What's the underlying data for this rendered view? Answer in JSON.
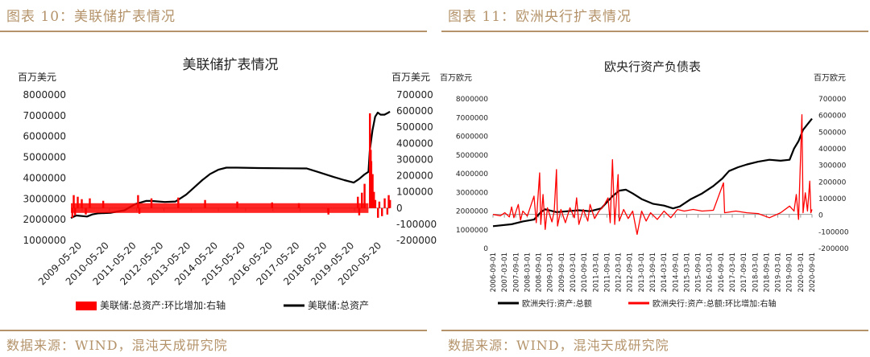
{
  "chart_data": [
    {
      "type": "line",
      "figure_label": "图表 10：美联储扩表情况",
      "title": "美联储扩表情况",
      "ylabel_left": "百万美元",
      "ylabel_right": "百万美元",
      "ylim_left": [
        1000000,
        8000000
      ],
      "yticks_left": [
        "8000000",
        "7000000",
        "6000000",
        "5000000",
        "4000000",
        "3000000",
        "2000000",
        "1000000"
      ],
      "ylim_right": [
        -200000,
        700000
      ],
      "yticks_right": [
        "700000",
        "600000",
        "500000",
        "400000",
        "300000",
        "200000",
        "100000",
        "0",
        "-100000",
        "-200000"
      ],
      "x_ticks": [
        "2009-05-20",
        "2010-05-20",
        "2011-05-20",
        "2012-05-20",
        "2013-05-20",
        "2014-05-20",
        "2015-05-20",
        "2016-05-20",
        "2017-05-20",
        "2018-05-20",
        "2019-05-20",
        "2020-05-20"
      ],
      "x_range": [
        2009.0,
        2020.9
      ],
      "series": [
        {
          "name": "美联储:总资产",
          "axis": "left",
          "color": "#000000",
          "kind": "line",
          "points": [
            [
              2009.0,
              2080000
            ],
            [
              2009.2,
              2200000
            ],
            [
              2009.6,
              2150000
            ],
            [
              2009.8,
              2250000
            ],
            [
              2010.0,
              2300000
            ],
            [
              2010.5,
              2330000
            ],
            [
              2011.0,
              2450000
            ],
            [
              2011.4,
              2750000
            ],
            [
              2011.8,
              2900000
            ],
            [
              2012.0,
              2900000
            ],
            [
              2012.5,
              2850000
            ],
            [
              2012.9,
              2870000
            ],
            [
              2013.0,
              2950000
            ],
            [
              2013.3,
              3200000
            ],
            [
              2013.6,
              3550000
            ],
            [
              2013.9,
              3900000
            ],
            [
              2014.2,
              4200000
            ],
            [
              2014.5,
              4400000
            ],
            [
              2014.8,
              4500000
            ],
            [
              2015.2,
              4500000
            ],
            [
              2016.0,
              4480000
            ],
            [
              2017.0,
              4470000
            ],
            [
              2017.8,
              4460000
            ],
            [
              2018.2,
              4300000
            ],
            [
              2018.8,
              4050000
            ],
            [
              2019.2,
              3900000
            ],
            [
              2019.55,
              3780000
            ],
            [
              2019.75,
              3950000
            ],
            [
              2019.95,
              4170000
            ],
            [
              2020.1,
              4300000
            ],
            [
              2020.15,
              5300000
            ],
            [
              2020.25,
              6300000
            ],
            [
              2020.35,
              6950000
            ],
            [
              2020.45,
              7150000
            ],
            [
              2020.55,
              7050000
            ],
            [
              2020.7,
              7050000
            ],
            [
              2020.85,
              7150000
            ],
            [
              2020.9,
              7200000
            ]
          ]
        },
        {
          "name": "美联储:总资产:环比增加:右轴",
          "axis": "right",
          "color": "#ff0000",
          "kind": "bar",
          "band": [
            2009.0,
            2020.1,
            -30000,
            30000
          ],
          "points": [
            [
              2009.05,
              -60000
            ],
            [
              2009.1,
              80000
            ],
            [
              2009.15,
              -45000
            ],
            [
              2009.25,
              70000
            ],
            [
              2009.4,
              55000
            ],
            [
              2009.55,
              -40000
            ],
            [
              2009.7,
              60000
            ],
            [
              2010.2,
              45000
            ],
            [
              2011.5,
              80000
            ],
            [
              2011.55,
              -35000
            ],
            [
              2012.0,
              60000
            ],
            [
              2013.0,
              65000
            ],
            [
              2014.0,
              50000
            ],
            [
              2015.2,
              40000
            ],
            [
              2016.5,
              35000
            ],
            [
              2017.5,
              30000
            ],
            [
              2018.6,
              -40000
            ],
            [
              2019.7,
              70000
            ],
            [
              2019.75,
              -45000
            ],
            [
              2019.85,
              95000
            ],
            [
              2019.95,
              150000
            ],
            [
              2020.15,
              586000
            ],
            [
              2020.18,
              360000
            ],
            [
              2020.2,
              290000
            ],
            [
              2020.25,
              210000
            ],
            [
              2020.3,
              100000
            ],
            [
              2020.35,
              50000
            ],
            [
              2020.45,
              -60000
            ],
            [
              2020.5,
              40000
            ],
            [
              2020.6,
              -50000
            ],
            [
              2020.7,
              60000
            ],
            [
              2020.8,
              -40000
            ],
            [
              2020.85,
              80000
            ],
            [
              2020.9,
              50000
            ]
          ]
        }
      ],
      "source": "数据来源：WIND，混沌天成研究院"
    },
    {
      "type": "line",
      "figure_label": "图表 11：欧洲央行扩表情况",
      "title": "欧央行资产负债表",
      "ylabel_left": "百万欧元",
      "ylabel_right": "百万欧元",
      "ylim_left": [
        0,
        8000000
      ],
      "yticks_left": [
        "8000000",
        "7000000",
        "6000000",
        "5000000",
        "4000000",
        "3000000",
        "2000000",
        "1000000",
        "0"
      ],
      "ylim_right": [
        -200000,
        700000
      ],
      "yticks_right": [
        "700000",
        "600000",
        "500000",
        "400000",
        "300000",
        "200000",
        "100000",
        "0",
        "-100000",
        "-200000"
      ],
      "x_ticks": [
        "2006-09-01",
        "2007-03-01",
        "2007-09-01",
        "2008-03-01",
        "2008-09-01",
        "2009-03-01",
        "2009-09-01",
        "2010-03-01",
        "2010-09-01",
        "2011-03-01",
        "2011-09-01",
        "2012-03-01",
        "2012-09-01",
        "2013-03-01",
        "2013-09-01",
        "2014-03-01",
        "2014-09-01",
        "2015-03-01",
        "2015-09-01",
        "2016-03-01",
        "2016-09-01",
        "2017-03-01",
        "2017-09-01",
        "2018-03-01",
        "2018-09-01",
        "2019-03-01",
        "2019-09-01",
        "2020-03-01",
        "2020-09-01"
      ],
      "x_range": [
        2006.67,
        2020.9
      ],
      "series": [
        {
          "name": "欧洲央行:资产:总额",
          "axis": "left",
          "color": "#000000",
          "kind": "line",
          "points": [
            [
              2006.67,
              1150000
            ],
            [
              2007.5,
              1250000
            ],
            [
              2008.0,
              1400000
            ],
            [
              2008.5,
              1500000
            ],
            [
              2008.8,
              1900000
            ],
            [
              2009.0,
              2050000
            ],
            [
              2009.5,
              1900000
            ],
            [
              2010.0,
              1950000
            ],
            [
              2010.5,
              2000000
            ],
            [
              2011.0,
              1950000
            ],
            [
              2011.5,
              2100000
            ],
            [
              2011.8,
              2500000
            ],
            [
              2012.0,
              2750000
            ],
            [
              2012.3,
              3050000
            ],
            [
              2012.6,
              3100000
            ],
            [
              2012.9,
              2900000
            ],
            [
              2013.3,
              2600000
            ],
            [
              2013.8,
              2350000
            ],
            [
              2014.3,
              2250000
            ],
            [
              2014.7,
              2100000
            ],
            [
              2015.0,
              2200000
            ],
            [
              2015.5,
              2600000
            ],
            [
              2016.0,
              2900000
            ],
            [
              2016.5,
              3300000
            ],
            [
              2016.9,
              3700000
            ],
            [
              2017.2,
              4100000
            ],
            [
              2017.6,
              4300000
            ],
            [
              2018.0,
              4450000
            ],
            [
              2018.5,
              4600000
            ],
            [
              2019.0,
              4700000
            ],
            [
              2019.5,
              4650000
            ],
            [
              2019.9,
              4700000
            ],
            [
              2020.1,
              5300000
            ],
            [
              2020.3,
              5700000
            ],
            [
              2020.5,
              6300000
            ],
            [
              2020.7,
              6600000
            ],
            [
              2020.9,
              6900000
            ]
          ]
        },
        {
          "name": "欧洲央行:资产:总额:环比增加:右轴",
          "axis": "right",
          "color": "#ff0000",
          "kind": "line",
          "points": [
            [
              2006.67,
              0
            ],
            [
              2007.0,
              -8000
            ],
            [
              2007.2,
              10000
            ],
            [
              2007.4,
              -15000
            ],
            [
              2007.5,
              45000
            ],
            [
              2007.6,
              -20000
            ],
            [
              2007.8,
              60000
            ],
            [
              2007.9,
              -35000
            ],
            [
              2008.0,
              20000
            ],
            [
              2008.2,
              -10000
            ],
            [
              2008.5,
              110000
            ],
            [
              2008.6,
              -50000
            ],
            [
              2008.75,
              250000
            ],
            [
              2008.8,
              -60000
            ],
            [
              2008.9,
              120000
            ],
            [
              2009.0,
              -90000
            ],
            [
              2009.1,
              40000
            ],
            [
              2009.3,
              -45000
            ],
            [
              2009.4,
              20000
            ],
            [
              2009.5,
              270000
            ],
            [
              2009.55,
              -70000
            ],
            [
              2009.7,
              30000
            ],
            [
              2009.9,
              -50000
            ],
            [
              2010.1,
              40000
            ],
            [
              2010.3,
              -20000
            ],
            [
              2010.4,
              100000
            ],
            [
              2010.5,
              -60000
            ],
            [
              2010.7,
              30000
            ],
            [
              2010.9,
              -40000
            ],
            [
              2011.0,
              60000
            ],
            [
              2011.2,
              -25000
            ],
            [
              2011.4,
              20000
            ],
            [
              2011.6,
              50000
            ],
            [
              2011.8,
              100000
            ],
            [
              2011.9,
              -50000
            ],
            [
              2012.0,
              330000
            ],
            [
              2012.1,
              -60000
            ],
            [
              2012.25,
              240000
            ],
            [
              2012.3,
              -40000
            ],
            [
              2012.5,
              30000
            ],
            [
              2012.7,
              -25000
            ],
            [
              2012.9,
              20000
            ],
            [
              2013.1,
              -120000
            ],
            [
              2013.3,
              20000
            ],
            [
              2013.5,
              -40000
            ],
            [
              2013.7,
              10000
            ],
            [
              2014.0,
              -30000
            ],
            [
              2014.3,
              20000
            ],
            [
              2014.6,
              -20000
            ],
            [
              2014.9,
              30000
            ],
            [
              2015.2,
              20000
            ],
            [
              2015.6,
              30000
            ],
            [
              2016.0,
              20000
            ],
            [
              2016.5,
              25000
            ],
            [
              2016.95,
              190000
            ],
            [
              2017.0,
              10000
            ],
            [
              2017.5,
              20000
            ],
            [
              2018.0,
              10000
            ],
            [
              2018.5,
              5000
            ],
            [
              2019.0,
              -20000
            ],
            [
              2019.5,
              10000
            ],
            [
              2019.9,
              50000
            ],
            [
              2020.1,
              20000
            ],
            [
              2020.2,
              120000
            ],
            [
              2020.3,
              -30000
            ],
            [
              2020.45,
              600000
            ],
            [
              2020.5,
              10000
            ],
            [
              2020.6,
              130000
            ],
            [
              2020.7,
              20000
            ],
            [
              2020.8,
              200000
            ],
            [
              2020.85,
              10000
            ],
            [
              2020.9,
              30000
            ]
          ]
        }
      ],
      "source": "数据来源：WIND，混沌天成研究院"
    }
  ]
}
